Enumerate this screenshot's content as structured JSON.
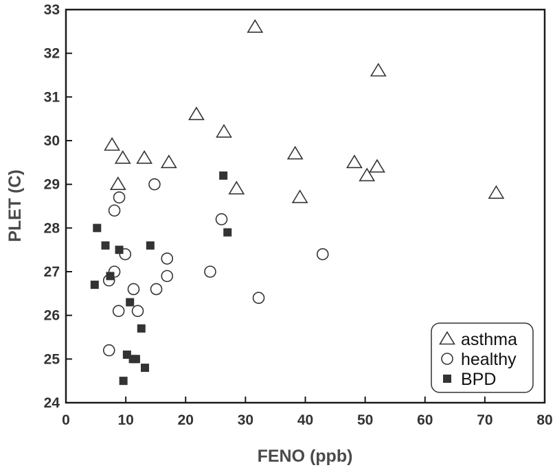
{
  "chart_data": {
    "type": "scatter",
    "title": "",
    "xlabel": "FENO (ppb)",
    "ylabel": "PLET (C)",
    "xlim": [
      0,
      80
    ],
    "ylim": [
      24,
      33
    ],
    "xticks": [
      0,
      10,
      20,
      30,
      40,
      50,
      60,
      70,
      80
    ],
    "yticks": [
      24,
      25,
      26,
      27,
      28,
      29,
      30,
      31,
      32,
      33
    ],
    "grid": false,
    "legend_position": "bottom-right",
    "series": [
      {
        "name": "asthma",
        "marker": "open-triangle",
        "color": "#333333",
        "points": [
          [
            7.7,
            29.9
          ],
          [
            9.5,
            29.6
          ],
          [
            8.7,
            29.0
          ],
          [
            13.1,
            29.6
          ],
          [
            17.2,
            29.5
          ],
          [
            21.8,
            30.6
          ],
          [
            26.4,
            30.2
          ],
          [
            28.5,
            28.9
          ],
          [
            31.6,
            32.6
          ],
          [
            38.3,
            29.7
          ],
          [
            39.1,
            28.7
          ],
          [
            48.2,
            29.5
          ],
          [
            50.3,
            29.2
          ],
          [
            52.0,
            29.4
          ],
          [
            52.2,
            31.6
          ],
          [
            71.9,
            28.8
          ]
        ]
      },
      {
        "name": "healthy",
        "marker": "open-circle",
        "color": "#333333",
        "points": [
          [
            8.1,
            28.4
          ],
          [
            8.9,
            28.7
          ],
          [
            14.8,
            29.0
          ],
          [
            26.0,
            28.2
          ],
          [
            9.9,
            27.4
          ],
          [
            8.1,
            27.0
          ],
          [
            7.2,
            26.8
          ],
          [
            8.8,
            26.1
          ],
          [
            11.3,
            26.6
          ],
          [
            12.0,
            26.1
          ],
          [
            15.1,
            26.6
          ],
          [
            16.9,
            26.9
          ],
          [
            16.9,
            27.3
          ],
          [
            24.1,
            27.0
          ],
          [
            32.2,
            26.4
          ],
          [
            42.9,
            27.4
          ],
          [
            7.2,
            25.2
          ]
        ]
      },
      {
        "name": "BPD",
        "marker": "filled-square",
        "color": "#333333",
        "points": [
          [
            5.2,
            28.0
          ],
          [
            6.6,
            27.6
          ],
          [
            8.9,
            27.5
          ],
          [
            14.1,
            27.6
          ],
          [
            26.3,
            29.2
          ],
          [
            27.0,
            27.9
          ],
          [
            4.8,
            26.7
          ],
          [
            7.4,
            26.9
          ],
          [
            10.7,
            26.3
          ],
          [
            12.6,
            25.7
          ],
          [
            10.2,
            25.1
          ],
          [
            11.2,
            25.0
          ],
          [
            11.7,
            25.0
          ],
          [
            13.2,
            24.8
          ],
          [
            9.6,
            24.5
          ]
        ]
      }
    ]
  }
}
